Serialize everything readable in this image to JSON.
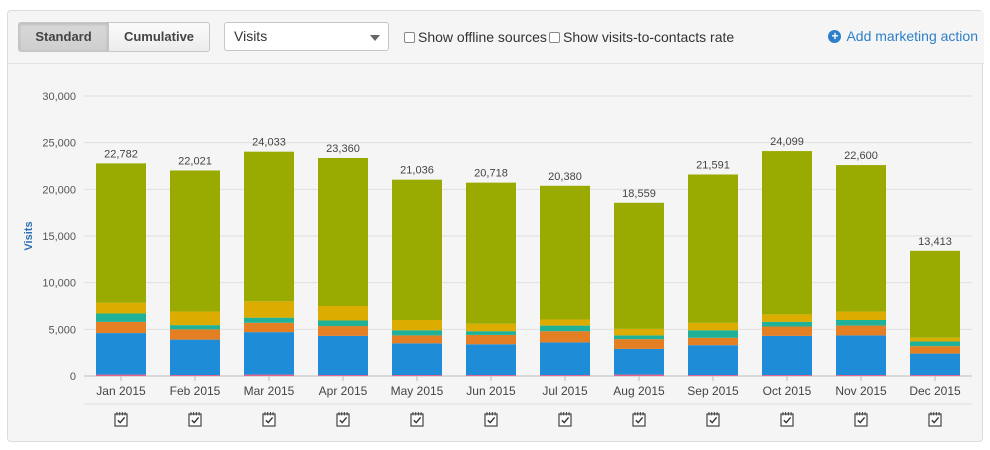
{
  "toolbar": {
    "standard_label": "Standard",
    "cumulative_label": "Cumulative",
    "metric_select_value": "Visits",
    "offline_sources_label": "Show offline sources",
    "visits_rate_label": "Show visits-to-contacts rate",
    "add_action_label": "Add marketing action",
    "accent_color": "#2d7fc9"
  },
  "chart_data": {
    "type": "bar",
    "stacked": true,
    "ylabel": "Visits",
    "ylim": [
      0,
      30000
    ],
    "yticks": [
      0,
      5000,
      10000,
      15000,
      20000,
      25000,
      30000
    ],
    "ytick_labels": [
      "0",
      "5,000",
      "10,000",
      "15,000",
      "20,000",
      "25,000",
      "30,000"
    ],
    "categories": [
      "Jan 2015",
      "Feb 2015",
      "Mar 2015",
      "Apr 2015",
      "May 2015",
      "Jun 2015",
      "Jul 2015",
      "Aug 2015",
      "Sep 2015",
      "Oct 2015",
      "Nov 2015",
      "Dec 2015"
    ],
    "totals": [
      22782,
      22021,
      24033,
      23360,
      21036,
      20718,
      20380,
      18559,
      21591,
      24099,
      22600,
      13413
    ],
    "total_labels": [
      "22,782",
      "22,021",
      "24,033",
      "23,360",
      "21,036",
      "20,718",
      "20,380",
      "18,559",
      "21,591",
      "24,099",
      "22,600",
      "13,413"
    ],
    "grid": true,
    "series": [
      {
        "color": "#e85d89",
        "values": [
          150,
          100,
          150,
          100,
          100,
          100,
          100,
          150,
          100,
          100,
          100,
          100
        ]
      },
      {
        "color": "#1f8cd8",
        "values": [
          4450,
          3800,
          4550,
          4200,
          3400,
          3300,
          3500,
          2750,
          3200,
          4200,
          4250,
          2300
        ]
      },
      {
        "color": "#e47f24",
        "values": [
          1200,
          1100,
          1000,
          1050,
          850,
          1000,
          1200,
          1050,
          800,
          1000,
          1050,
          800
        ]
      },
      {
        "color": "#1fb299",
        "values": [
          900,
          450,
          550,
          600,
          550,
          400,
          600,
          400,
          800,
          500,
          600,
          500
        ]
      },
      {
        "color": "#ddac00",
        "values": [
          1150,
          1450,
          1750,
          1550,
          1100,
          800,
          650,
          700,
          800,
          800,
          900,
          400
        ]
      },
      {
        "color": "#99ab00",
        "values": [
          14932,
          15121,
          16033,
          15860,
          15036,
          15118,
          14330,
          13509,
          15891,
          17499,
          15700,
          9313
        ]
      }
    ],
    "marketing_action_icon": "notepad-check-icon"
  }
}
